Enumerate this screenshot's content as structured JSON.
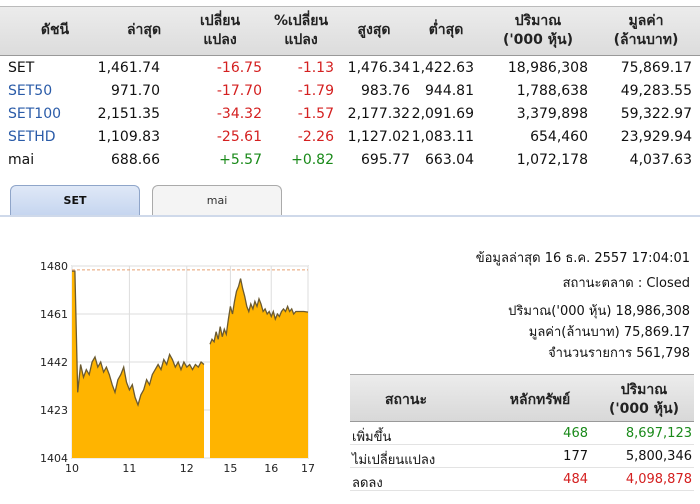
{
  "table": {
    "headers": {
      "index": "ดัชนี",
      "last": "ล่าสุด",
      "change1": "เปลี่ยน",
      "change2": "แปลง",
      "pct1": "%เปลี่ยน",
      "pct2": "แปลง",
      "high": "สูงสุด",
      "low": "ต่ำสุด",
      "vol1": "ปริมาณ",
      "vol2": "('000 หุ้น)",
      "val1": "มูลค่า",
      "val2": "(ล้านบาท)"
    },
    "rows": [
      {
        "name": "SET",
        "last": "1,461.74",
        "change": "-16.75",
        "pct": "-1.13",
        "high": "1,476.34",
        "low": "1,422.63",
        "volume": "18,986,308",
        "value": "75,869.17"
      },
      {
        "name": "SET50",
        "last": "971.70",
        "change": "-17.70",
        "pct": "-1.79",
        "high": "983.76",
        "low": "944.81",
        "volume": "1,788,638",
        "value": "49,283.55"
      },
      {
        "name": "SET100",
        "last": "2,151.35",
        "change": "-34.32",
        "pct": "-1.57",
        "high": "2,177.32",
        "low": "2,091.69",
        "volume": "3,379,898",
        "value": "59,322.97"
      },
      {
        "name": "SETHD",
        "last": "1,109.83",
        "change": "-25.61",
        "pct": "-2.26",
        "high": "1,127.02",
        "low": "1,083.11",
        "volume": "654,460",
        "value": "23,929.94"
      },
      {
        "name": "mai",
        "last": "688.66",
        "change": "+5.57",
        "pct": "+0.82",
        "high": "695.77",
        "low": "663.04",
        "volume": "1,072,178",
        "value": "4,037.63"
      }
    ]
  },
  "tabs": {
    "set": "SET",
    "mai": "mai"
  },
  "info": {
    "updated": "ข้อมูลล่าสุด 16 ธ.ค. 2557 17:04:01",
    "market_status": "สถานะตลาด : Closed",
    "volume": "ปริมาณ('000 หุ้น) 18,986,308",
    "value": "มูลค่า(ล้านบาท) 75,869.17",
    "trades": "จำนวนรายการ 561,798"
  },
  "status_table": {
    "h_status": "สถานะ",
    "h_securities": "หลักทรัพย์",
    "h_vol1": "ปริมาณ",
    "h_vol2": "('000 หุ้น)",
    "rows": [
      {
        "label": "เพิ่มขึ้น",
        "count": "468",
        "volume": "8,697,123"
      },
      {
        "label": "ไม่เปลี่ยนแปลง",
        "count": "177",
        "volume": "5,800,346"
      },
      {
        "label": "ลดลง",
        "count": "484",
        "volume": "4,098,878"
      }
    ]
  },
  "colors": {
    "up": "#1a8a1a",
    "down": "#d42020",
    "unchanged": "#111111",
    "area": "#ffb400",
    "prev_close_line": "#e8a070"
  },
  "chart_data": {
    "type": "area",
    "y_ticks": [
      "1480",
      "1461",
      "1442",
      "1423",
      "1404"
    ],
    "x_ticks": [
      "10",
      "11",
      "12",
      "15",
      "16",
      "17"
    ],
    "ylim": [
      1404,
      1480
    ],
    "prev_close": 1478.49,
    "session_morning": [
      [
        10.0,
        1478
      ],
      [
        10.05,
        1478
      ],
      [
        10.1,
        1430
      ],
      [
        10.15,
        1441
      ],
      [
        10.2,
        1436
      ],
      [
        10.25,
        1439
      ],
      [
        10.3,
        1437
      ],
      [
        10.35,
        1442
      ],
      [
        10.4,
        1444
      ],
      [
        10.45,
        1440
      ],
      [
        10.5,
        1442
      ],
      [
        10.55,
        1438
      ],
      [
        10.6,
        1440
      ],
      [
        10.65,
        1437
      ],
      [
        10.7,
        1433
      ],
      [
        10.75,
        1430
      ],
      [
        10.8,
        1435
      ],
      [
        10.85,
        1437
      ],
      [
        10.9,
        1440
      ],
      [
        10.95,
        1434
      ],
      [
        11.0,
        1431
      ],
      [
        11.05,
        1433
      ],
      [
        11.1,
        1428
      ],
      [
        11.15,
        1425
      ],
      [
        11.2,
        1429
      ],
      [
        11.25,
        1431
      ],
      [
        11.3,
        1435
      ],
      [
        11.35,
        1433
      ],
      [
        11.4,
        1437
      ],
      [
        11.45,
        1439
      ],
      [
        11.5,
        1441
      ],
      [
        11.55,
        1439
      ],
      [
        11.6,
        1443
      ],
      [
        11.65,
        1441
      ],
      [
        11.7,
        1445
      ],
      [
        11.75,
        1443
      ],
      [
        11.8,
        1440
      ],
      [
        11.85,
        1442
      ],
      [
        11.9,
        1439
      ],
      [
        11.95,
        1442
      ],
      [
        12.0,
        1440
      ],
      [
        12.05,
        1441
      ],
      [
        12.1,
        1439
      ],
      [
        12.15,
        1441
      ],
      [
        12.2,
        1440
      ],
      [
        12.25,
        1442
      ],
      [
        12.3,
        1441
      ]
    ],
    "session_afternoon": [
      [
        14.5,
        1449
      ],
      [
        14.55,
        1451
      ],
      [
        14.6,
        1450
      ],
      [
        14.65,
        1454
      ],
      [
        14.7,
        1451
      ],
      [
        14.75,
        1456
      ],
      [
        14.8,
        1452
      ],
      [
        14.85,
        1455
      ],
      [
        14.9,
        1453
      ],
      [
        14.95,
        1459
      ],
      [
        15.0,
        1464
      ],
      [
        15.05,
        1461
      ],
      [
        15.1,
        1466
      ],
      [
        15.15,
        1470
      ],
      [
        15.2,
        1472
      ],
      [
        15.25,
        1475
      ],
      [
        15.3,
        1471
      ],
      [
        15.35,
        1468
      ],
      [
        15.4,
        1464
      ],
      [
        15.45,
        1462
      ],
      [
        15.5,
        1465
      ],
      [
        15.55,
        1463
      ],
      [
        15.6,
        1466
      ],
      [
        15.65,
        1464
      ],
      [
        15.7,
        1467
      ],
      [
        15.75,
        1465
      ],
      [
        15.8,
        1462
      ],
      [
        15.85,
        1463
      ],
      [
        15.9,
        1461
      ],
      [
        15.95,
        1462
      ],
      [
        16.0,
        1460
      ],
      [
        16.05,
        1462
      ],
      [
        16.1,
        1459
      ],
      [
        16.15,
        1461
      ],
      [
        16.2,
        1460
      ],
      [
        16.25,
        1462
      ],
      [
        16.3,
        1463
      ],
      [
        16.35,
        1462
      ],
      [
        16.4,
        1464
      ],
      [
        16.45,
        1462
      ],
      [
        16.5,
        1463
      ],
      [
        16.55,
        1461
      ],
      [
        16.6,
        1462
      ],
      [
        16.7,
        1462
      ],
      [
        16.8,
        1462
      ],
      [
        16.9,
        1461.74
      ]
    ]
  }
}
